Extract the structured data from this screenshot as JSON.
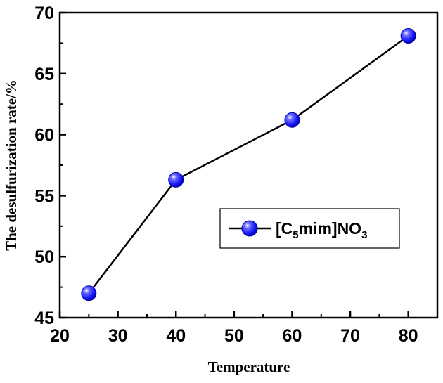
{
  "chart_data": {
    "type": "line",
    "xlabel": "Temperature",
    "ylabel": "The desulfurization rate/%",
    "xlim": [
      20,
      85
    ],
    "ylim": [
      45,
      70
    ],
    "xticks": [
      "20",
      "30",
      "40",
      "50",
      "60",
      "70",
      "80"
    ],
    "yticks": [
      "45",
      "50",
      "55",
      "60",
      "65",
      "70"
    ],
    "grid": false,
    "legend_position": "center-right",
    "series": [
      {
        "name": "[C5mim]NO3",
        "legend_parts": {
          "pre": "[C",
          "sub1": "5",
          "mid": "mim]NO",
          "sub2": "3"
        },
        "x": [
          25,
          40,
          60,
          80
        ],
        "y": [
          47.0,
          56.3,
          61.2,
          68.1
        ],
        "line_color": "#000000",
        "marker_color": "#1a1aff"
      }
    ]
  }
}
